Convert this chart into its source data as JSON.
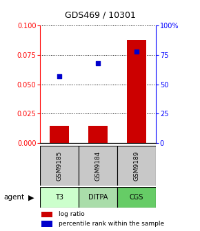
{
  "title": "GDS469 / 10301",
  "samples": [
    "GSM9185",
    "GSM9184",
    "GSM9189"
  ],
  "agents": [
    "T3",
    "DITPA",
    "CGS"
  ],
  "log_ratio": [
    0.015,
    0.015,
    0.088
  ],
  "percentile_rank_pct": [
    57,
    68,
    78
  ],
  "ylim_left": [
    0,
    0.1
  ],
  "ylim_right": [
    0,
    100
  ],
  "yticks_left": [
    0,
    0.025,
    0.05,
    0.075,
    0.1
  ],
  "yticks_right": [
    0,
    25,
    50,
    75,
    100
  ],
  "ytick_labels_right": [
    "0",
    "25",
    "50",
    "75",
    "100%"
  ],
  "bar_color": "#cc0000",
  "dot_color": "#0000cc",
  "sample_bg": "#c8c8c8",
  "agent_colors": [
    "#ccffcc",
    "#aaddaa",
    "#66cc66"
  ],
  "legend_bar_label": "log ratio",
  "legend_dot_label": "percentile rank within the sample",
  "agent_label": "agent",
  "bar_width": 0.5,
  "title_fontsize": 9,
  "tick_fontsize": 7,
  "legend_fontsize": 6.5
}
